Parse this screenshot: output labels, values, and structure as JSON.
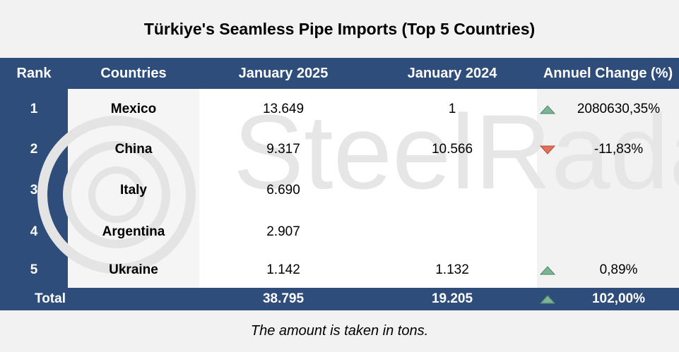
{
  "title": "Türkiye's Seamless Pipe Imports (Top 5 Countries)",
  "watermark": "SteelRadar",
  "header": [
    "Rank",
    "Countries",
    "January 2025",
    "January 2024",
    "Annuel Change (%)"
  ],
  "rows": [
    {
      "rank": "1",
      "country": "Mexico",
      "jan2025": "13.649",
      "jan2024": "1",
      "change": "2080630,35%",
      "trend": "up"
    },
    {
      "rank": "2",
      "country": "China",
      "jan2025": "9.317",
      "jan2024": "10.566",
      "change": "-11,83%",
      "trend": "down"
    },
    {
      "rank": "3",
      "country": "Italy",
      "jan2025": "6.690",
      "jan2024": null,
      "change": null,
      "trend": null
    },
    {
      "rank": "4",
      "country": "Argentina",
      "jan2025": "2.907",
      "jan2024": null,
      "change": null,
      "trend": null
    },
    {
      "rank": "5",
      "country": "Ukraine",
      "jan2025": "1.142",
      "jan2024": "1.132",
      "change": "0,89%",
      "trend": "up"
    }
  ],
  "total": {
    "label": "Total",
    "jan2025": "38.795",
    "jan2024": "19.205",
    "change": "102,00%",
    "trend": "up"
  },
  "note": "The amount is taken in tons."
}
